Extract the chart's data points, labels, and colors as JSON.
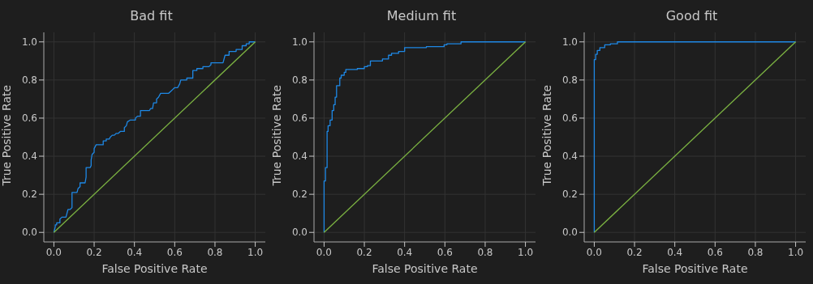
{
  "chart_data": [
    {
      "type": "line",
      "title": "Bad fit",
      "xlabel": "False Positive Rate",
      "ylabel": "True Positive Rate",
      "xlim": [
        -0.05,
        1.05
      ],
      "ylim": [
        -0.05,
        1.05
      ],
      "xticks": [
        {
          "value": 0,
          "label": "0.0"
        },
        {
          "value": 0.2,
          "label": "0.2"
        },
        {
          "value": 0.4,
          "label": "0.4"
        },
        {
          "value": 0.6,
          "label": "0.6"
        },
        {
          "value": 0.8,
          "label": "0.8"
        },
        {
          "value": 1,
          "label": "1.0"
        }
      ],
      "yticks": [
        {
          "value": 0,
          "label": "0.0"
        },
        {
          "value": 0.2,
          "label": "0.2"
        },
        {
          "value": 0.4,
          "label": "0.4"
        },
        {
          "value": 0.6,
          "label": "0.6"
        },
        {
          "value": 0.8,
          "label": "0.8"
        },
        {
          "value": 1,
          "label": "1.0"
        }
      ],
      "grid": true,
      "legend": false,
      "marker": "none",
      "series": [
        {
          "color": "#1e88e5",
          "x": [
            0,
            0.007,
            0.007,
            0.014,
            0.014,
            0.03,
            0.03,
            0.04,
            0.06,
            0.07,
            0.08,
            0.09,
            0.09,
            0.115,
            0.12,
            0.13,
            0.13,
            0.155,
            0.16,
            0.16,
            0.18,
            0.185,
            0.185,
            0.19,
            0.2,
            0.2,
            0.21,
            0.245,
            0.245,
            0.26,
            0.26,
            0.275,
            0.28,
            0.29,
            0.3,
            0.31,
            0.32,
            0.33,
            0.35,
            0.35,
            0.36,
            0.365,
            0.38,
            0.405,
            0.405,
            0.415,
            0.43,
            0.43,
            0.475,
            0.48,
            0.49,
            0.495,
            0.51,
            0.51,
            0.52,
            0.53,
            0.57,
            0.58,
            0.59,
            0.6,
            0.615,
            0.62,
            0.625,
            0.63,
            0.66,
            0.66,
            0.69,
            0.69,
            0.71,
            0.71,
            0.74,
            0.74,
            0.77,
            0.78,
            0.78,
            0.84,
            0.845,
            0.85,
            0.87,
            0.87,
            0.905,
            0.905,
            0.935,
            0.935,
            0.955,
            0.955,
            0.97,
            0.97,
            1
          ],
          "values": [
            0,
            0.03,
            0.04,
            0.04,
            0.05,
            0.05,
            0.07,
            0.08,
            0.08,
            0.12,
            0.12,
            0.13,
            0.21,
            0.21,
            0.23,
            0.24,
            0.26,
            0.26,
            0.29,
            0.34,
            0.34,
            0.35,
            0.38,
            0.41,
            0.42,
            0.44,
            0.46,
            0.46,
            0.48,
            0.48,
            0.49,
            0.49,
            0.5,
            0.51,
            0.51,
            0.52,
            0.52,
            0.53,
            0.53,
            0.55,
            0.56,
            0.58,
            0.59,
            0.59,
            0.6,
            0.61,
            0.61,
            0.64,
            0.64,
            0.65,
            0.65,
            0.68,
            0.68,
            0.7,
            0.71,
            0.73,
            0.73,
            0.74,
            0.75,
            0.76,
            0.76,
            0.77,
            0.78,
            0.8,
            0.8,
            0.81,
            0.81,
            0.85,
            0.85,
            0.86,
            0.86,
            0.87,
            0.87,
            0.88,
            0.89,
            0.89,
            0.91,
            0.93,
            0.93,
            0.95,
            0.95,
            0.96,
            0.96,
            0.98,
            0.98,
            0.99,
            0.99,
            1,
            1
          ]
        },
        {
          "color": "#7cb342",
          "x": [
            0,
            1
          ],
          "values": [
            0,
            1
          ]
        }
      ]
    },
    {
      "type": "line",
      "title": "Medium fit",
      "xlabel": "False Positive Rate",
      "ylabel": "True Positive Rate",
      "xlim": [
        -0.05,
        1.05
      ],
      "ylim": [
        -0.05,
        1.05
      ],
      "xticks": [
        {
          "value": 0,
          "label": "0.0"
        },
        {
          "value": 0.2,
          "label": "0.2"
        },
        {
          "value": 0.4,
          "label": "0.4"
        },
        {
          "value": 0.6,
          "label": "0.6"
        },
        {
          "value": 0.8,
          "label": "0.8"
        },
        {
          "value": 1,
          "label": "1.0"
        }
      ],
      "yticks": [
        {
          "value": 0,
          "label": "0.0"
        },
        {
          "value": 0.2,
          "label": "0.2"
        },
        {
          "value": 0.4,
          "label": "0.4"
        },
        {
          "value": 0.6,
          "label": "0.6"
        },
        {
          "value": 0.8,
          "label": "0.8"
        },
        {
          "value": 1,
          "label": "1.0"
        }
      ],
      "grid": true,
      "legend": false,
      "marker": "none",
      "series": [
        {
          "color": "#1e88e5",
          "x": [
            0,
            0,
            0.007,
            0.007,
            0.015,
            0.015,
            0.02,
            0.02,
            0.03,
            0.03,
            0.04,
            0.04,
            0.048,
            0.048,
            0.055,
            0.055,
            0.062,
            0.062,
            0.078,
            0.078,
            0.085,
            0.085,
            0.1,
            0.1,
            0.108,
            0.108,
            0.165,
            0.165,
            0.2,
            0.2,
            0.215,
            0.215,
            0.23,
            0.23,
            0.29,
            0.29,
            0.32,
            0.32,
            0.335,
            0.335,
            0.37,
            0.37,
            0.4,
            0.4,
            0.508,
            0.508,
            0.596,
            0.596,
            0.61,
            0.61,
            0.68,
            0.68,
            1
          ],
          "values": [
            0,
            0.27,
            0.27,
            0.34,
            0.34,
            0.53,
            0.53,
            0.56,
            0.56,
            0.59,
            0.59,
            0.64,
            0.64,
            0.67,
            0.67,
            0.71,
            0.71,
            0.77,
            0.77,
            0.81,
            0.81,
            0.825,
            0.825,
            0.84,
            0.84,
            0.855,
            0.855,
            0.86,
            0.86,
            0.87,
            0.87,
            0.875,
            0.875,
            0.9,
            0.9,
            0.91,
            0.91,
            0.93,
            0.93,
            0.94,
            0.94,
            0.95,
            0.95,
            0.97,
            0.97,
            0.975,
            0.975,
            0.985,
            0.985,
            0.99,
            0.99,
            1,
            1
          ]
        },
        {
          "color": "#7cb342",
          "x": [
            0,
            1
          ],
          "values": [
            0,
            1
          ]
        }
      ]
    },
    {
      "type": "line",
      "title": "Good fit",
      "xlabel": "False Positive Rate",
      "ylabel": "True Positive Rate",
      "xlim": [
        -0.05,
        1.05
      ],
      "ylim": [
        -0.05,
        1.05
      ],
      "xticks": [
        {
          "value": 0,
          "label": "0.0"
        },
        {
          "value": 0.2,
          "label": "0.2"
        },
        {
          "value": 0.4,
          "label": "0.4"
        },
        {
          "value": 0.6,
          "label": "0.6"
        },
        {
          "value": 0.8,
          "label": "0.8"
        },
        {
          "value": 1,
          "label": "1.0"
        }
      ],
      "yticks": [
        {
          "value": 0,
          "label": "0.0"
        },
        {
          "value": 0.2,
          "label": "0.2"
        },
        {
          "value": 0.4,
          "label": "0.4"
        },
        {
          "value": 0.6,
          "label": "0.6"
        },
        {
          "value": 0.8,
          "label": "0.8"
        },
        {
          "value": 1,
          "label": "1.0"
        }
      ],
      "grid": true,
      "legend": false,
      "marker": "none",
      "series": [
        {
          "color": "#1e88e5",
          "x": [
            0,
            0,
            0.007,
            0.007,
            0.015,
            0.015,
            0.028,
            0.028,
            0.052,
            0.052,
            0.08,
            0.08,
            0.115,
            0.115,
            1
          ],
          "values": [
            0,
            0.907,
            0.907,
            0.935,
            0.935,
            0.955,
            0.955,
            0.97,
            0.97,
            0.985,
            0.985,
            0.99,
            0.99,
            1,
            1
          ]
        },
        {
          "color": "#7cb342",
          "x": [
            0,
            1
          ],
          "values": [
            0,
            1
          ]
        }
      ]
    }
  ]
}
